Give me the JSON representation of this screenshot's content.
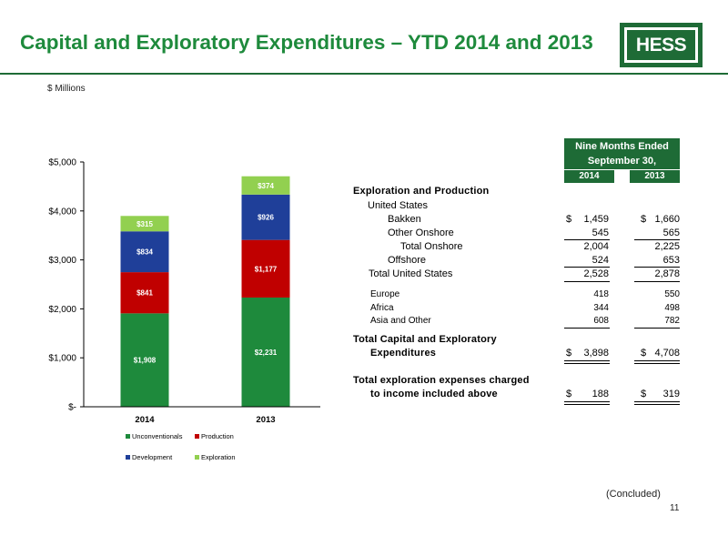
{
  "slide": {
    "title": "Capital and Exploratory Expenditures – YTD 2014 and 2013",
    "logo_text": "HESS",
    "subtitle": "$ Millions",
    "concluded": "(Concluded)",
    "page_number": "11"
  },
  "chart_data": {
    "type": "bar",
    "stacked": true,
    "categories": [
      "2014",
      "2013"
    ],
    "series": [
      {
        "name": "Unconventionals",
        "values": [
          1908,
          2231
        ],
        "labels": [
          "$1,908",
          "$2,231"
        ],
        "color": "#1e8a3c"
      },
      {
        "name": "Production",
        "values": [
          841,
          1177
        ],
        "labels": [
          "$841",
          "$1,177"
        ],
        "color": "#c00000"
      },
      {
        "name": "Development",
        "values": [
          834,
          926
        ],
        "labels": [
          "$834",
          "$926"
        ],
        "color": "#1f3f99"
      },
      {
        "name": "Exploration",
        "values": [
          315,
          374
        ],
        "labels": [
          "$315",
          "$374"
        ],
        "color": "#92d050"
      }
    ],
    "yticks": [
      0,
      1000,
      2000,
      3000,
      4000,
      5000
    ],
    "ytick_labels": [
      "$-",
      "$1,000",
      "$2,000",
      "$3,000",
      "$4,000",
      "$5,000"
    ],
    "ylim": [
      0,
      5000
    ],
    "grid": false,
    "legend": "bottom"
  },
  "table": {
    "header": "Nine Months Ended",
    "header2": "September 30,",
    "years": [
      "2014",
      "2013"
    ],
    "section": "Exploration and Production",
    "us_label": "United States",
    "bakken": {
      "label": "Bakken",
      "y2014": "1,459",
      "y2013": "1,660"
    },
    "other_onshore": {
      "label": "Other Onshore",
      "y2014": "545",
      "y2013": "565"
    },
    "total_onshore": {
      "label": "Total Onshore",
      "y2014": "2,004",
      "y2013": "2,225"
    },
    "offshore": {
      "label": "Offshore",
      "y2014": "524",
      "y2013": "653"
    },
    "total_us": {
      "label": "Total United States",
      "y2014": "2,528",
      "y2013": "2,878"
    },
    "europe": {
      "label": "Europe",
      "y2014": "418",
      "y2013": "550"
    },
    "africa": {
      "label": "Africa",
      "y2014": "344",
      "y2013": "498"
    },
    "asia": {
      "label": "Asia and Other",
      "y2014": "608",
      "y2013": "782"
    },
    "total_capex": {
      "label1": "Total Capital and Exploratory",
      "label2": "Expenditures",
      "y2014": "3,898",
      "y2013": "4,708"
    },
    "total_expl": {
      "label1": "Total exploration expenses charged",
      "label2": "to income included above",
      "y2014": "188",
      "y2013": "319"
    },
    "dollar_sign": "$"
  }
}
